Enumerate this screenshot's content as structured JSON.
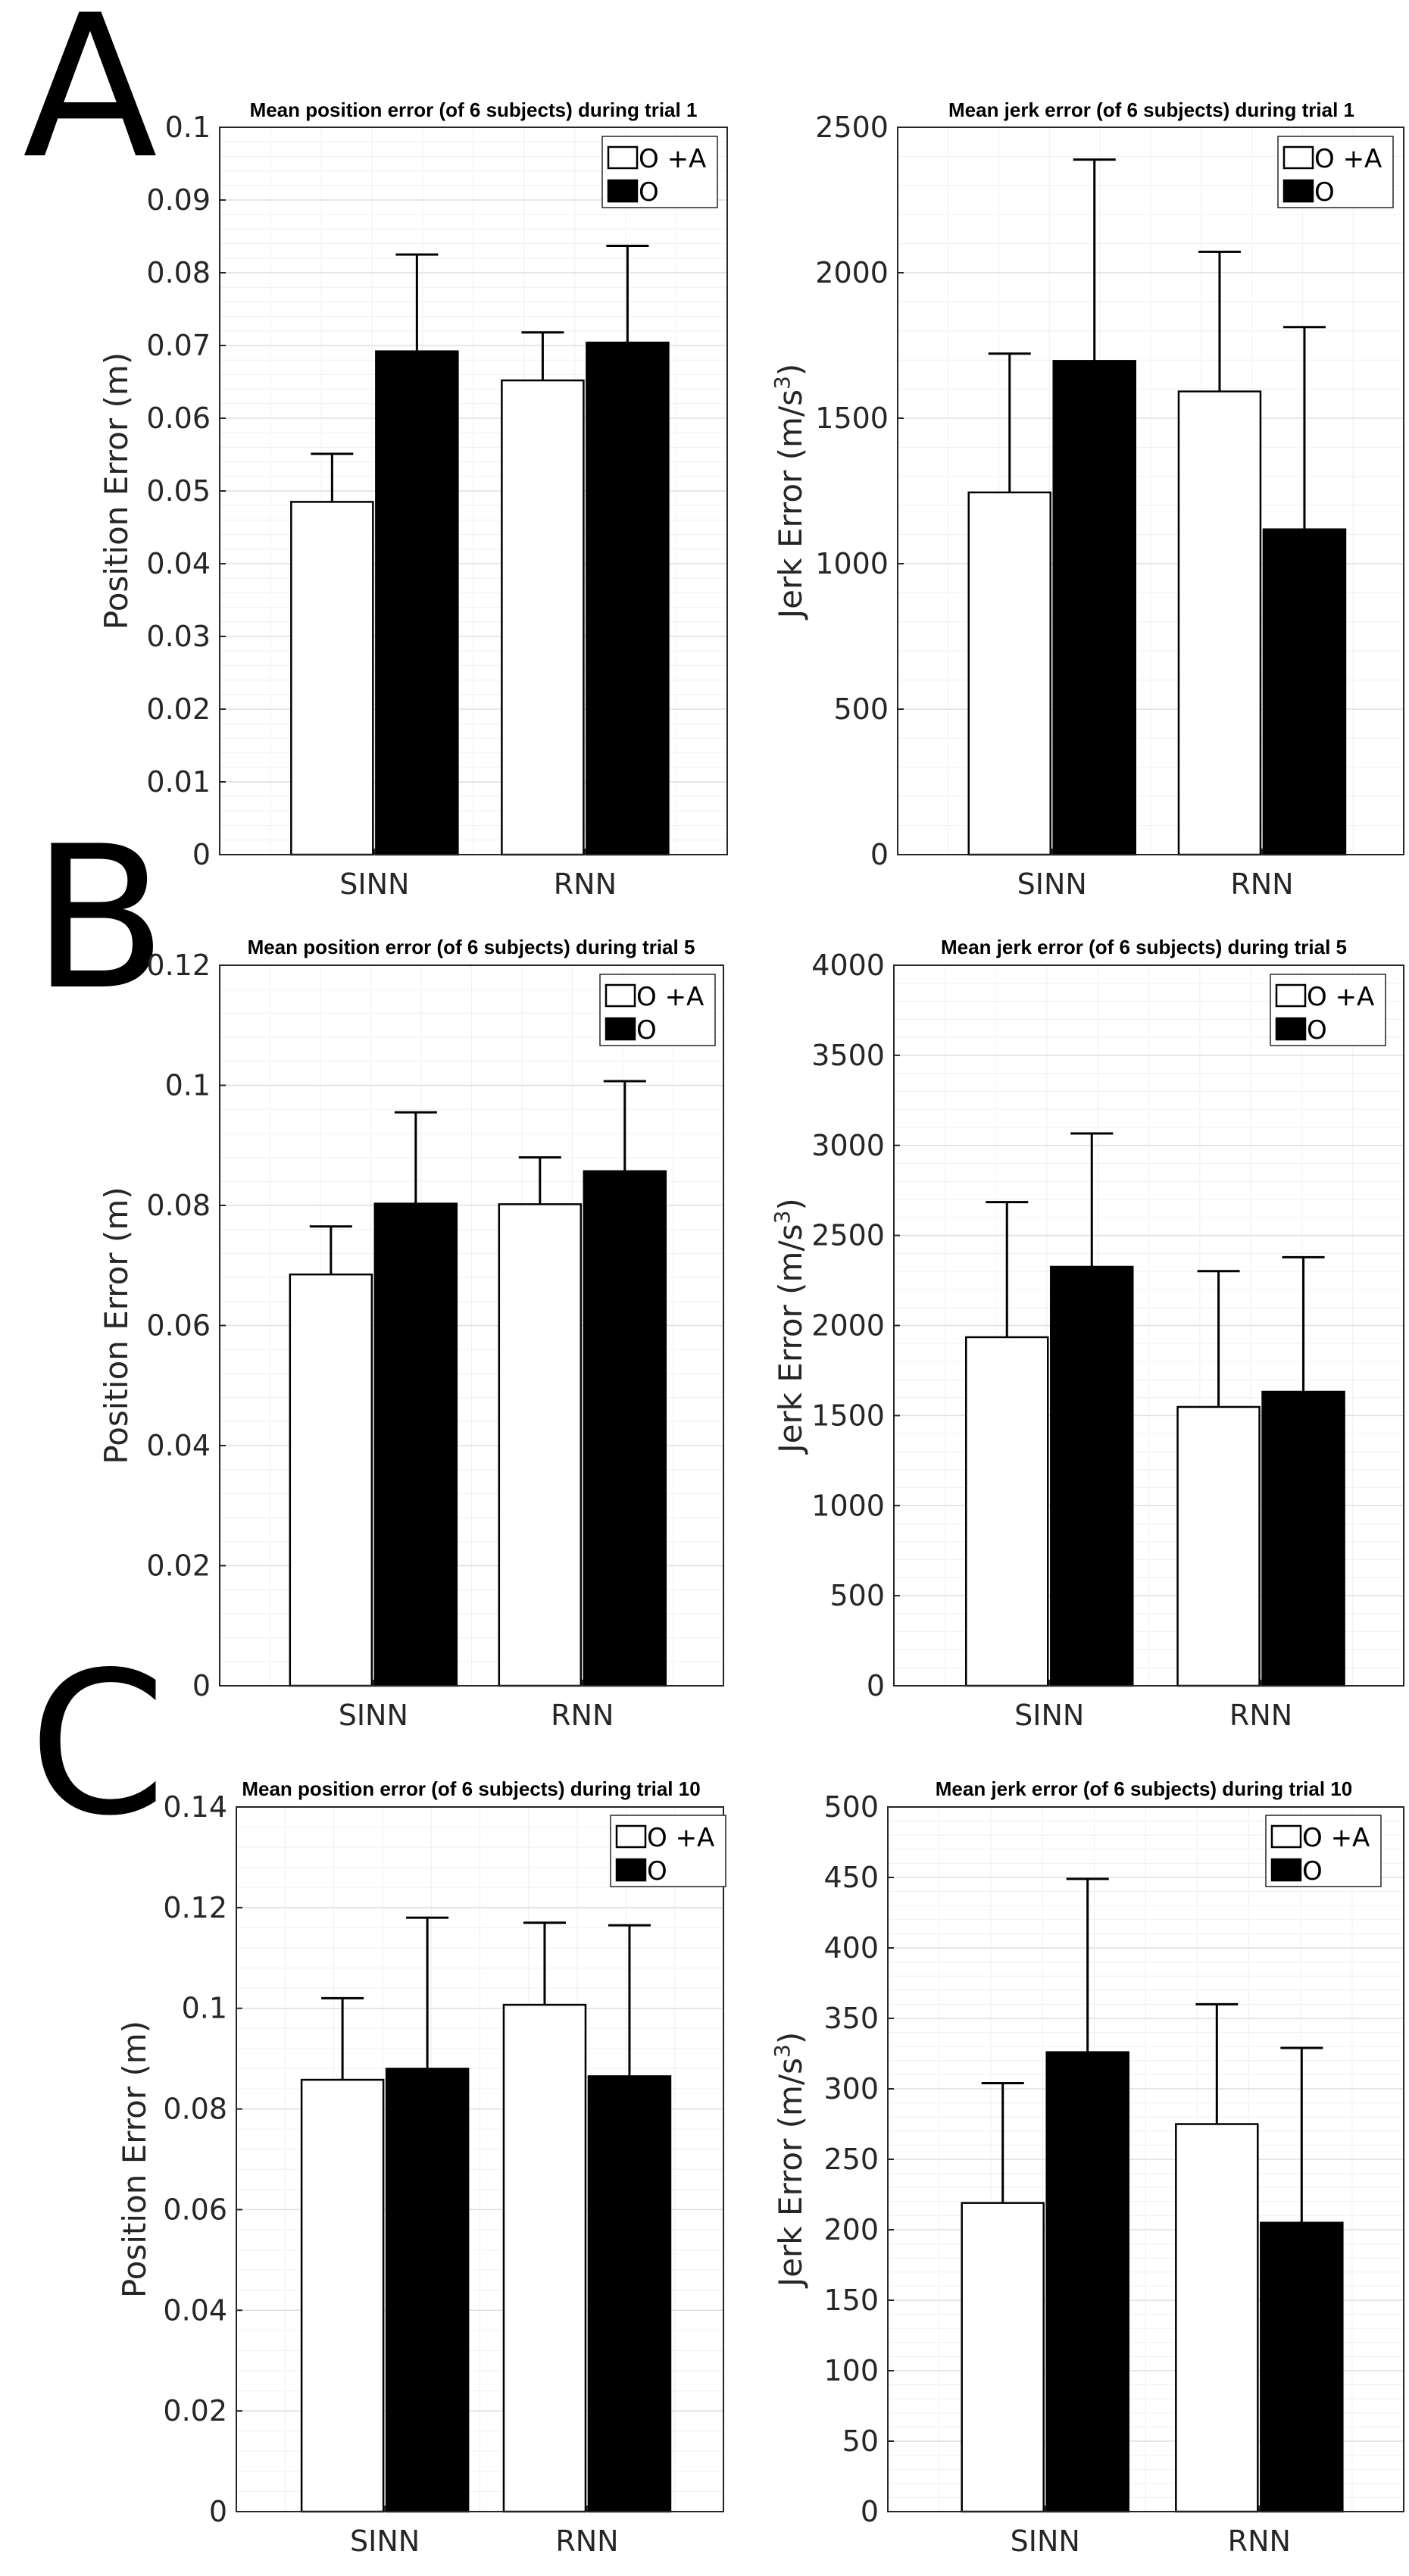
{
  "panel_labels": [
    "A",
    "B",
    "C"
  ],
  "legend": [
    {
      "label": "O +A",
      "color": "#ffffff"
    },
    {
      "label": "O",
      "color": "#000000"
    }
  ],
  "colors": {
    "series_a": "#ffffff",
    "series_b": "#000000",
    "grid": "#dfdfdf",
    "axis": "#262626"
  },
  "chart_data": [
    {
      "panel": "A",
      "type": "bar",
      "title": "Mean position error (of 6 subjects) during trial 1",
      "ylabel": "Position Error (m)",
      "ylabel_sup": "",
      "categories": [
        "SINN",
        "RNN"
      ],
      "ylim": [
        0,
        0.1
      ],
      "yticks": [
        0,
        0.01,
        0.02,
        0.03,
        0.04,
        0.05,
        0.06,
        0.07,
        0.08,
        0.09,
        0.1
      ],
      "ytick_labels": [
        "0",
        "0.01",
        "0.02",
        "0.03",
        "0.04",
        "0.05",
        "0.06",
        "0.07",
        "0.08",
        "0.09",
        "0.1"
      ],
      "series": [
        {
          "name": "O +A",
          "values": [
            0.0485,
            0.0652
          ],
          "error_tops": [
            0.0551,
            0.0718
          ]
        },
        {
          "name": "O",
          "values": [
            0.0692,
            0.0704
          ],
          "error_tops": [
            0.0825,
            0.0837
          ]
        }
      ]
    },
    {
      "panel": "A",
      "type": "bar",
      "title": "Mean jerk error (of 6 subjects) during trial 1",
      "ylabel": "Jerk Error (m/s",
      "ylabel_sup": "3",
      "ylabel_end": ")",
      "categories": [
        "SINN",
        "RNN"
      ],
      "ylim": [
        0,
        2500
      ],
      "yticks": [
        0,
        500,
        1000,
        1500,
        2000,
        2500
      ],
      "ytick_labels": [
        "0",
        "500",
        "1000",
        "1500",
        "2000",
        "2500"
      ],
      "series": [
        {
          "name": "O +A",
          "values": [
            1245,
            1592
          ],
          "error_tops": [
            1722,
            2072
          ]
        },
        {
          "name": "O",
          "values": [
            1697,
            1118
          ],
          "error_tops": [
            2389,
            1813
          ]
        }
      ]
    },
    {
      "panel": "B",
      "type": "bar",
      "title": "Mean position error (of 6 subjects) during trial 5",
      "ylabel": "Position Error (m)",
      "ylabel_sup": "",
      "categories": [
        "SINN",
        "RNN"
      ],
      "ylim": [
        0,
        0.12
      ],
      "yticks": [
        0,
        0.02,
        0.04,
        0.06,
        0.08,
        0.1,
        0.12
      ],
      "ytick_labels": [
        "0",
        "0.02",
        "0.04",
        "0.06",
        "0.08",
        "0.1",
        "0.12"
      ],
      "series": [
        {
          "name": "O +A",
          "values": [
            0.0685,
            0.0802
          ],
          "error_tops": [
            0.0765,
            0.088
          ]
        },
        {
          "name": "O",
          "values": [
            0.0803,
            0.0857
          ],
          "error_tops": [
            0.0955,
            0.1007
          ]
        }
      ]
    },
    {
      "panel": "B",
      "type": "bar",
      "title": "Mean jerk error (of 6 subjects) during trial 5",
      "ylabel": "Jerk Error (m/s",
      "ylabel_sup": "3",
      "ylabel_end": ")",
      "categories": [
        "SINN",
        "RNN"
      ],
      "ylim": [
        0,
        4000
      ],
      "yticks": [
        0,
        500,
        1000,
        1500,
        2000,
        2500,
        3000,
        3500,
        4000
      ],
      "ytick_labels": [
        "0",
        "500",
        "1000",
        "1500",
        "2000",
        "2500",
        "3000",
        "3500",
        "4000"
      ],
      "series": [
        {
          "name": "O +A",
          "values": [
            1935,
            1548
          ],
          "error_tops": [
            2685,
            2302
          ]
        },
        {
          "name": "O",
          "values": [
            2326,
            1632
          ],
          "error_tops": [
            3066,
            2379
          ]
        }
      ]
    },
    {
      "panel": "C",
      "type": "bar",
      "title": "Mean position error (of 6 subjects) during trial 10",
      "ylabel": "Position Error (m)",
      "ylabel_sup": "",
      "categories": [
        "SINN",
        "RNN"
      ],
      "ylim": [
        0,
        0.14
      ],
      "yticks": [
        0,
        0.02,
        0.04,
        0.06,
        0.08,
        0.1,
        0.12,
        0.14
      ],
      "ytick_labels": [
        "0",
        "0.02",
        "0.04",
        "0.06",
        "0.08",
        "0.1",
        "0.12",
        "0.14"
      ],
      "series": [
        {
          "name": "O +A",
          "values": [
            0.0858,
            0.1007
          ],
          "error_tops": [
            0.102,
            0.117
          ]
        },
        {
          "name": "O",
          "values": [
            0.088,
            0.0865
          ],
          "error_tops": [
            0.118,
            0.1165
          ]
        }
      ]
    },
    {
      "panel": "C",
      "type": "bar",
      "title": "Mean jerk error (of 6 subjects) during trial 10",
      "ylabel": "Jerk Error (m/s",
      "ylabel_sup": "3",
      "ylabel_end": ")",
      "categories": [
        "SINN",
        "RNN"
      ],
      "ylim": [
        0,
        500
      ],
      "yticks": [
        0,
        50,
        100,
        150,
        200,
        250,
        300,
        350,
        400,
        450,
        500
      ],
      "ytick_labels": [
        "0",
        "50",
        "100",
        "150",
        "200",
        "250",
        "300",
        "350",
        "400",
        "450",
        "500"
      ],
      "series": [
        {
          "name": "O +A",
          "values": [
            219,
            275
          ],
          "error_tops": [
            304,
            360
          ]
        },
        {
          "name": "O",
          "values": [
            326,
            205
          ],
          "error_tops": [
            449,
            329
          ]
        }
      ]
    }
  ]
}
